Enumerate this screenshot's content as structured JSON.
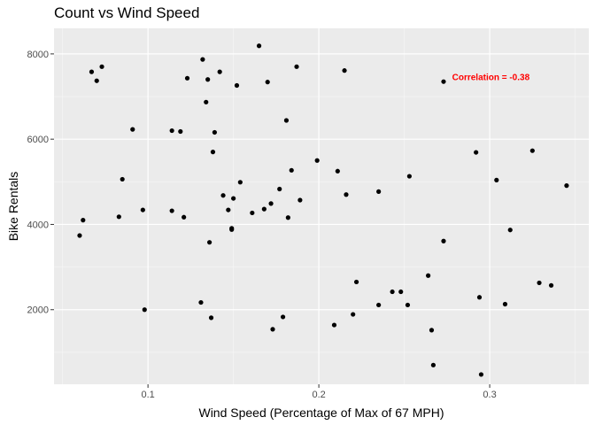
{
  "chart_data": {
    "type": "scatter",
    "title": "Count vs Wind Speed",
    "xlabel": "Wind Speed (Percentage of Max of 67 MPH)",
    "ylabel": "Bike Rentals",
    "xlim": [
      0.045,
      0.358
    ],
    "ylim": [
      250,
      8600
    ],
    "x_ticks": [
      0.1,
      0.2,
      0.3
    ],
    "x_tick_labels": [
      "0.1",
      "0.2",
      "0.3"
    ],
    "y_ticks": [
      2000,
      4000,
      6000,
      8000
    ],
    "y_tick_labels": [
      "2000",
      "4000",
      "6000",
      "8000"
    ],
    "grid": true,
    "point_color": "#000000",
    "panel_background": "#ebebeb",
    "grid_color": "#ffffff",
    "annotation": {
      "text": "Correlation = -0.38",
      "x": 0.278,
      "y": 7450,
      "color": "#ff0000"
    },
    "points": [
      {
        "x": 0.06,
        "y": 3740
      },
      {
        "x": 0.062,
        "y": 4100
      },
      {
        "x": 0.067,
        "y": 7580
      },
      {
        "x": 0.07,
        "y": 7370
      },
      {
        "x": 0.073,
        "y": 7700
      },
      {
        "x": 0.083,
        "y": 4180
      },
      {
        "x": 0.085,
        "y": 5060
      },
      {
        "x": 0.091,
        "y": 6230
      },
      {
        "x": 0.097,
        "y": 4340
      },
      {
        "x": 0.098,
        "y": 2000
      },
      {
        "x": 0.114,
        "y": 6200
      },
      {
        "x": 0.114,
        "y": 4320
      },
      {
        "x": 0.119,
        "y": 6180
      },
      {
        "x": 0.121,
        "y": 4170
      },
      {
        "x": 0.123,
        "y": 7430
      },
      {
        "x": 0.131,
        "y": 2170
      },
      {
        "x": 0.132,
        "y": 7870
      },
      {
        "x": 0.134,
        "y": 6870
      },
      {
        "x": 0.135,
        "y": 7400
      },
      {
        "x": 0.136,
        "y": 3580
      },
      {
        "x": 0.137,
        "y": 1810
      },
      {
        "x": 0.138,
        "y": 5700
      },
      {
        "x": 0.139,
        "y": 6160
      },
      {
        "x": 0.142,
        "y": 7580
      },
      {
        "x": 0.144,
        "y": 4680
      },
      {
        "x": 0.147,
        "y": 4340
      },
      {
        "x": 0.149,
        "y": 3910
      },
      {
        "x": 0.149,
        "y": 3880
      },
      {
        "x": 0.15,
        "y": 4610
      },
      {
        "x": 0.152,
        "y": 7260
      },
      {
        "x": 0.154,
        "y": 4990
      },
      {
        "x": 0.161,
        "y": 4270
      },
      {
        "x": 0.165,
        "y": 8190
      },
      {
        "x": 0.168,
        "y": 4360
      },
      {
        "x": 0.17,
        "y": 7340
      },
      {
        "x": 0.172,
        "y": 4490
      },
      {
        "x": 0.173,
        "y": 1540
      },
      {
        "x": 0.177,
        "y": 4830
      },
      {
        "x": 0.179,
        "y": 1830
      },
      {
        "x": 0.181,
        "y": 6440
      },
      {
        "x": 0.182,
        "y": 4160
      },
      {
        "x": 0.184,
        "y": 5270
      },
      {
        "x": 0.187,
        "y": 7700
      },
      {
        "x": 0.189,
        "y": 4570
      },
      {
        "x": 0.199,
        "y": 5500
      },
      {
        "x": 0.209,
        "y": 1640
      },
      {
        "x": 0.211,
        "y": 5250
      },
      {
        "x": 0.215,
        "y": 7610
      },
      {
        "x": 0.216,
        "y": 4700
      },
      {
        "x": 0.22,
        "y": 1890
      },
      {
        "x": 0.222,
        "y": 2650
      },
      {
        "x": 0.235,
        "y": 4770
      },
      {
        "x": 0.235,
        "y": 2110
      },
      {
        "x": 0.243,
        "y": 2420
      },
      {
        "x": 0.248,
        "y": 2420
      },
      {
        "x": 0.252,
        "y": 2110
      },
      {
        "x": 0.253,
        "y": 5130
      },
      {
        "x": 0.264,
        "y": 2800
      },
      {
        "x": 0.266,
        "y": 1520
      },
      {
        "x": 0.267,
        "y": 700
      },
      {
        "x": 0.273,
        "y": 7350
      },
      {
        "x": 0.273,
        "y": 3610
      },
      {
        "x": 0.292,
        "y": 5690
      },
      {
        "x": 0.294,
        "y": 2290
      },
      {
        "x": 0.295,
        "y": 480
      },
      {
        "x": 0.304,
        "y": 5040
      },
      {
        "x": 0.309,
        "y": 2130
      },
      {
        "x": 0.312,
        "y": 3870
      },
      {
        "x": 0.325,
        "y": 5730
      },
      {
        "x": 0.329,
        "y": 2630
      },
      {
        "x": 0.336,
        "y": 2570
      },
      {
        "x": 0.345,
        "y": 4910
      }
    ]
  }
}
